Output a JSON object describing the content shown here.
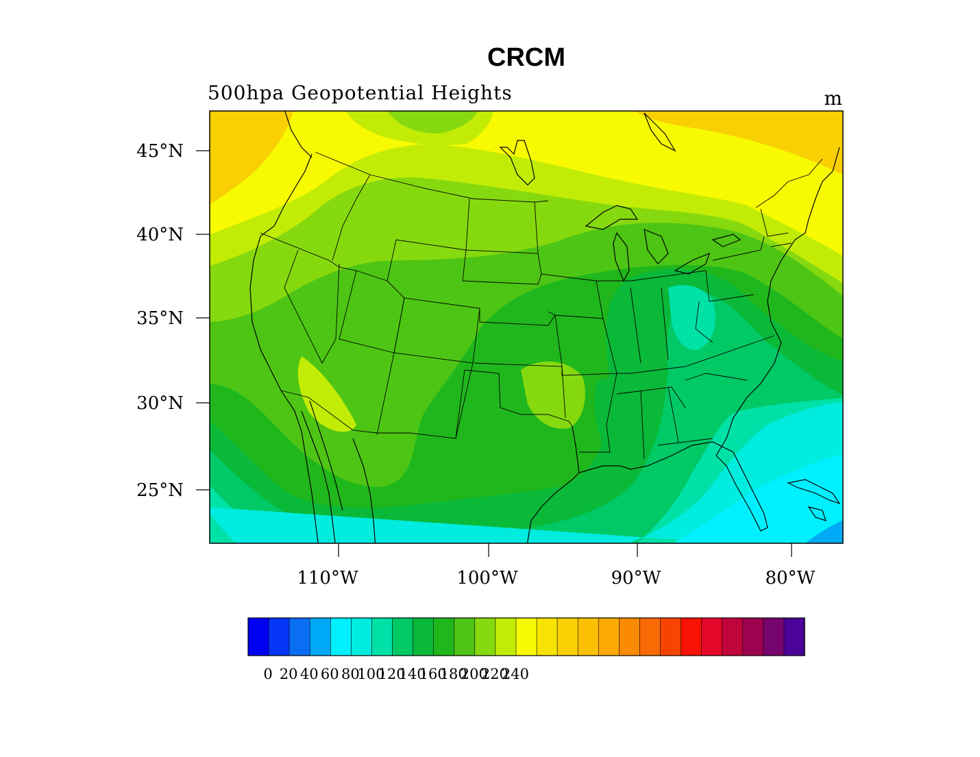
{
  "title": "CRCM",
  "subtitle_left": "500hpa Geopotential Heights",
  "subtitle_right": "m",
  "lat_ticks": [
    "45°N",
    "40°N",
    "35°N",
    "30°N",
    "25°N"
  ],
  "lon_ticks": [
    "110°W",
    "100°W",
    "90°W",
    "80°W"
  ],
  "colorbar": {
    "labels": [
      "0",
      "20",
      "40",
      "60",
      "80",
      "100",
      "120",
      "140",
      "160",
      "180",
      "200",
      "220",
      "240"
    ],
    "colors": [
      "#0000f5",
      "#0535f5",
      "#0a6ef5",
      "#00a9f5",
      "#00f0ff",
      "#00ecdf",
      "#00e1a8",
      "#00c966",
      "#0bb939",
      "#20b71c",
      "#4ec514",
      "#86d90e",
      "#c2ec06",
      "#f8fa02",
      "#f8e203",
      "#f9d003",
      "#fbc004",
      "#fbaa04",
      "#fa8a04",
      "#f96a04",
      "#f84403",
      "#f81306",
      "#e4072a",
      "#c0043c",
      "#9e0350",
      "#76046e",
      "#4c0397"
    ]
  },
  "map_fill_levels": [
    "#f8fa02",
    "#f9d003",
    "#c2ec06",
    "#86d90e",
    "#4ec514",
    "#20b71c",
    "#0bb939",
    "#00c966",
    "#00e1a8",
    "#00ecdf",
    "#00f0ff",
    "#00a9f5"
  ]
}
